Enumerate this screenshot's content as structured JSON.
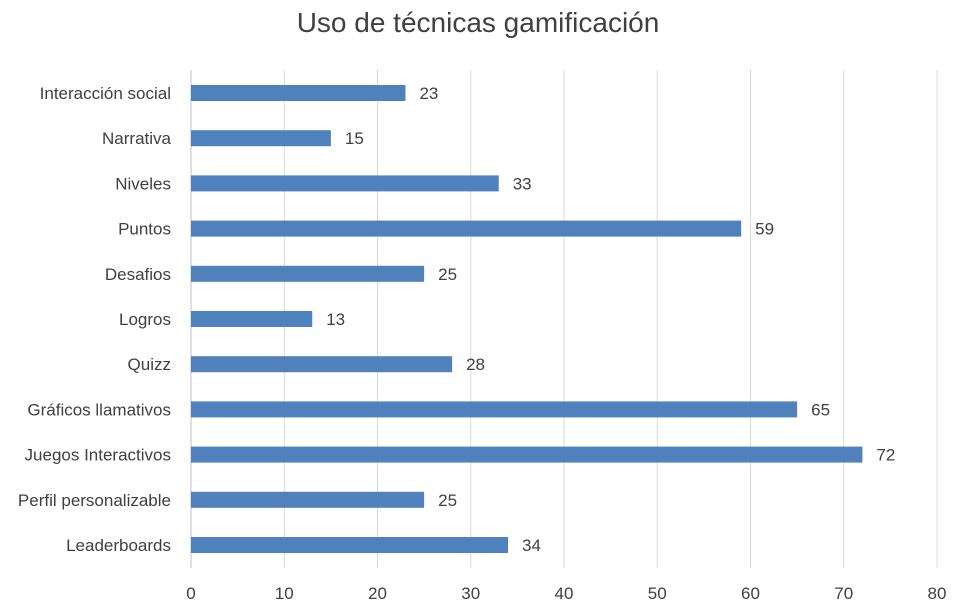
{
  "chart_data": {
    "type": "bar",
    "orientation": "horizontal",
    "title": "Uso de técnicas gamificación",
    "categories": [
      "Interacción social",
      "Narrativa",
      "Niveles",
      "Puntos",
      "Desafios",
      "Logros",
      "Quizz",
      "Gráficos llamativos",
      "Juegos Interactivos",
      "Perfil personalizable",
      "Leaderboards"
    ],
    "values": [
      23,
      15,
      33,
      59,
      25,
      13,
      28,
      65,
      72,
      25,
      34
    ],
    "xlim": [
      0,
      80
    ],
    "xticks": [
      0,
      10,
      20,
      30,
      40,
      50,
      60,
      70,
      80
    ],
    "xlabel": "",
    "ylabel": "",
    "grid": true,
    "data_labels": true,
    "bar_color": "#4f81bd"
  }
}
